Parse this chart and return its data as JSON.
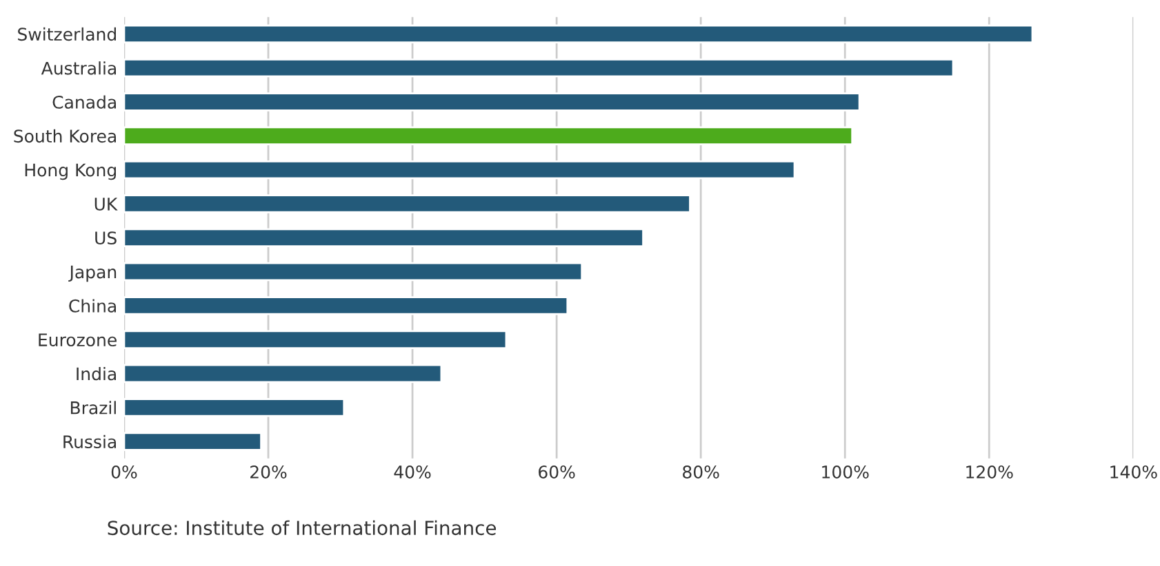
{
  "chart_data": {
    "type": "bar",
    "orientation": "horizontal",
    "categories": [
      "Switzerland",
      "Australia",
      "Canada",
      "South Korea",
      "Hong Kong",
      "UK",
      "US",
      "Japan",
      "China",
      "Eurozone",
      "India",
      "Brazil",
      "Russia"
    ],
    "values": [
      126,
      115,
      102,
      101,
      93,
      78.5,
      72,
      63.5,
      61.5,
      53,
      44,
      30.5,
      19
    ],
    "colors": [
      "#235a7a",
      "#235a7a",
      "#235a7a",
      "#4dab1c",
      "#235a7a",
      "#235a7a",
      "#235a7a",
      "#235a7a",
      "#235a7a",
      "#235a7a",
      "#235a7a",
      "#235a7a",
      "#235a7a"
    ],
    "xlim": [
      0,
      140
    ],
    "xticks": [
      {
        "value": 0,
        "label": "0%"
      },
      {
        "value": 20,
        "label": "20%"
      },
      {
        "value": 40,
        "label": "40%"
      },
      {
        "value": 60,
        "label": "60%"
      },
      {
        "value": 80,
        "label": "80%"
      },
      {
        "value": 100,
        "label": "100%"
      },
      {
        "value": 120,
        "label": "120%"
      },
      {
        "value": 140,
        "label": "140%"
      }
    ],
    "grid": "x",
    "annotations": [
      "Source: Institute of International Finance"
    ]
  }
}
